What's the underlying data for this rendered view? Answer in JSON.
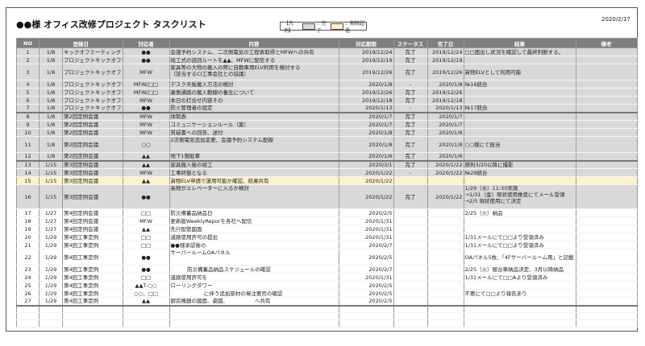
{
  "title": "●●様 オフィス改修プロジェクト タスクリスト",
  "date": "2020/2/17",
  "legend": {
    "prefix": "【凡例】",
    "done_label": "：完了",
    "overdue_label": "：期限超過",
    "done_color": "#d9d9d9",
    "overdue_color": "#fff2cc"
  },
  "columns": [
    "NO",
    "登録日",
    "対応者",
    "内容",
    "対応期限",
    "ステータス",
    "完了日",
    "結果",
    "備考"
  ],
  "rows": [
    {
      "no": "1",
      "date": "1/8",
      "meeting": "キックオフミーティング",
      "owner": "●●",
      "content": "会議予約システム、二次側電気の工程表取得とMFWへの共有",
      "due": "2019/12/24",
      "status": "完了",
      "done": "2019/12/24",
      "result": "□□面出し状況を確認して最終判断する。",
      "note": "",
      "state": "done"
    },
    {
      "no": "2",
      "date": "1/8",
      "meeting": "プロジェクトキックオフ",
      "owner": "●●",
      "content": "竣工式の巡回ルートを▲▲、MFWに配信する",
      "due": "2019/12/19",
      "status": "完了",
      "done": "2019/12/19",
      "result": "",
      "note": "",
      "state": "done"
    },
    {
      "no": "3",
      "date": "1/8",
      "meeting": "プロジェクトキックオフ",
      "owner": "MFW",
      "content": "家具等の大物の搬入の際に自動車用ELV利用を検討する\n（該当するCI工事会社との協議）",
      "due": "2019/12/26",
      "status": "完了",
      "done": "2019/12/26",
      "result": "貨物ELVとして利用可能",
      "note": "",
      "state": "done"
    },
    {
      "no": "4",
      "date": "1/8",
      "meeting": "プロジェクトキックオフ",
      "owner": "MFW/□□",
      "content": "デスク天板搬入方法の検討",
      "due": "2020/1/8",
      "status": "-",
      "done": "2020/1/8",
      "result": "№16統合",
      "note": "",
      "state": "done"
    },
    {
      "no": "5",
      "date": "1/8",
      "meeting": "プロジェクトキックオフ",
      "owner": "MFW/□□",
      "content": "裏側通路の搬入動線の養生について",
      "due": "2019/12/26",
      "status": "完了",
      "done": "2019/12/26",
      "result": "",
      "note": "",
      "state": "done"
    },
    {
      "no": "6",
      "date": "1/8",
      "meeting": "プロジェクトキックオフ",
      "owner": "MFW",
      "content": "本日の打合せ内容その",
      "due": "2019/12/18",
      "status": "完了",
      "done": "2019/12/18",
      "result": "",
      "note": "",
      "state": "done"
    },
    {
      "no": "7",
      "date": "1/8",
      "meeting": "プロジェクトキックオフ",
      "owner": "●●",
      "content": "防火管理者の設定",
      "due": "2020/1/13",
      "status": "-",
      "done": "2020/1/13",
      "result": "№17統合",
      "note": "",
      "state": "done"
    },
    {
      "no": "8",
      "date": "1/8",
      "meeting": "第2回定例会議",
      "owner": "MFW",
      "content": "体制表",
      "due": "2020/1/7",
      "status": "完了",
      "done": "2020/1/7",
      "result": "",
      "note": "",
      "state": "done"
    },
    {
      "no": "9",
      "date": "1/8",
      "meeting": "第2回定例会議",
      "owner": "MFW",
      "content": "コミュニケーションルール（案）",
      "due": "2020/1/7",
      "status": "完了",
      "done": "2020/1/7",
      "result": "",
      "note": "",
      "state": "done"
    },
    {
      "no": "10",
      "date": "1/8",
      "meeting": "第2回定例会議",
      "owner": "MFW",
      "content": "質疑書への回答、送付",
      "due": "2020/1/8",
      "status": "完了",
      "done": "2020/1/8",
      "result": "",
      "note": "",
      "state": "done"
    },
    {
      "no": "11",
      "date": "1/8",
      "meeting": "第2回定例会議",
      "owner": "○○",
      "content": "2次側電気追加変更、会議予約システム配線",
      "due": "2020/1/8",
      "status": "完了",
      "done": "2020/1/8",
      "result": "○○様にて担当",
      "note": "",
      "state": "done"
    },
    {
      "no": "12",
      "date": "1/8",
      "meeting": "第2回定例会議",
      "owner": "▲▲",
      "content": "地下1階駐車",
      "due": "2020/1/6",
      "status": "完了",
      "done": "2020/1/6",
      "result": "",
      "note": "",
      "state": "done"
    },
    {
      "no": "13",
      "date": "1/15",
      "meeting": "第3回定例会議",
      "owner": "▲▲",
      "content": "家具搬入後の竣工",
      "due": "2020/3/1",
      "status": "完了",
      "done": "2020/1/22",
      "result": "原則3/20以降に撮影",
      "note": "",
      "state": "done"
    },
    {
      "no": "14",
      "date": "1/15",
      "meeting": "第3回定例会議",
      "owner": "MFW",
      "content": "工事終盤となる",
      "due": "2020/1/22",
      "status": "-",
      "done": "2020/1/22",
      "result": "№29統合",
      "note": "",
      "state": "done"
    },
    {
      "no": "15",
      "date": "1/15",
      "meeting": "第3回定例会議",
      "owner": "▲▲",
      "content": "貨物ELV申請で運用可能か確認、結果共有",
      "due": "2020/1/22",
      "status": "",
      "done": "",
      "result": "",
      "note": "",
      "state": "over"
    },
    {
      "no": "16",
      "date": "1/15",
      "meeting": "第3回定例会議",
      "owner": "●●",
      "content": "長物がエレベーターに入るか検討",
      "due": "2020/1/22",
      "status": "完了",
      "done": "2020/1/22",
      "result": "1/29（水）11:30実施\n→1/31（金）現状使用推奨にてメール受領\n→2/5 現状使用にて決定",
      "note": "",
      "state": "done"
    },
    {
      "no": "17",
      "date": "1/27",
      "meeting": "第4回定例会議",
      "owner": "□□",
      "content": "防災備蓄品納品日",
      "due": "2020/2/5",
      "status": "",
      "done": "",
      "result": "2/25（火）納品",
      "note": "",
      "state": ""
    },
    {
      "no": "18",
      "date": "1/27",
      "meeting": "第4回定例会議",
      "owner": "MFW",
      "content": "更新版WeeklyReporを各社へ配信",
      "due": "2020/1/31",
      "status": "",
      "done": "",
      "result": "",
      "note": "",
      "state": ""
    },
    {
      "no": "19",
      "date": "1/27",
      "meeting": "第4回定例会議",
      "owner": "▲▲",
      "content": "先行配管図面",
      "due": "2020/1/31",
      "status": "",
      "done": "",
      "result": "",
      "note": "",
      "state": ""
    },
    {
      "no": "20",
      "date": "1/29",
      "meeting": "第4回工事定例",
      "owner": "□□",
      "content": "道路使用許可の提出",
      "due": "2020/1/31",
      "status": "",
      "done": "",
      "result": "1/31メールにて□□より受領済み",
      "note": "",
      "state": ""
    },
    {
      "no": "21",
      "date": "1/29",
      "meeting": "第4回工事定例",
      "owner": "□□",
      "content": "●●様承認後の",
      "due": "2020/2/7",
      "status": "",
      "done": "",
      "result": "1/31メールにて□□より受領済み",
      "note": "",
      "state": ""
    },
    {
      "no": "22",
      "date": "1/29",
      "meeting": "第4回工事定例",
      "owner": "●●",
      "content": "サーバールームOAパネル",
      "due": "2020/2/5",
      "status": "",
      "done": "",
      "result": "OAパネル5枚、「4Fサーバールーム用」と記載",
      "note": "",
      "state": ""
    },
    {
      "no": "23",
      "date": "1/29",
      "meeting": "第4回工事定例",
      "owner": "●●",
      "content": "          防災備蓄品納品スケジュールの確認",
      "due": "2020/2/7",
      "status": "",
      "done": "",
      "result": "2/25（火）服台車納品決定、3月以降納品",
      "note": "",
      "state": ""
    },
    {
      "no": "24",
      "date": "1/29",
      "meeting": "第4回工事定例",
      "owner": "□□",
      "content": "道路使用許可を",
      "due": "2020/1/31",
      "status": "",
      "done": "",
      "result": "1/31メールにて□□Aより受領済み",
      "note": "",
      "state": ""
    },
    {
      "no": "25",
      "date": "1/29",
      "meeting": "第4回工事定例",
      "owner": "▲▲T-○○",
      "content": "ローリングタワー",
      "due": "2020/2/5",
      "status": "",
      "done": "",
      "result": "",
      "note": "",
      "state": ""
    },
    {
      "no": "26",
      "date": "1/29",
      "meeting": "第4回工事定例",
      "owner": "○○、□□",
      "content": "                    に伴う追加部材の発注要否の確認",
      "due": "2020/2/5",
      "status": "",
      "done": "",
      "result": "不要にて□□より報告あり",
      "note": "",
      "state": ""
    },
    {
      "no": "27",
      "date": "1/29",
      "meeting": "第4回工事定例",
      "owner": "▲▲",
      "content": "厨房機器の図面、姿図、                ヘ共有",
      "due": "2020/2/5",
      "status": "",
      "done": "",
      "result": "",
      "note": "",
      "state": ""
    }
  ]
}
